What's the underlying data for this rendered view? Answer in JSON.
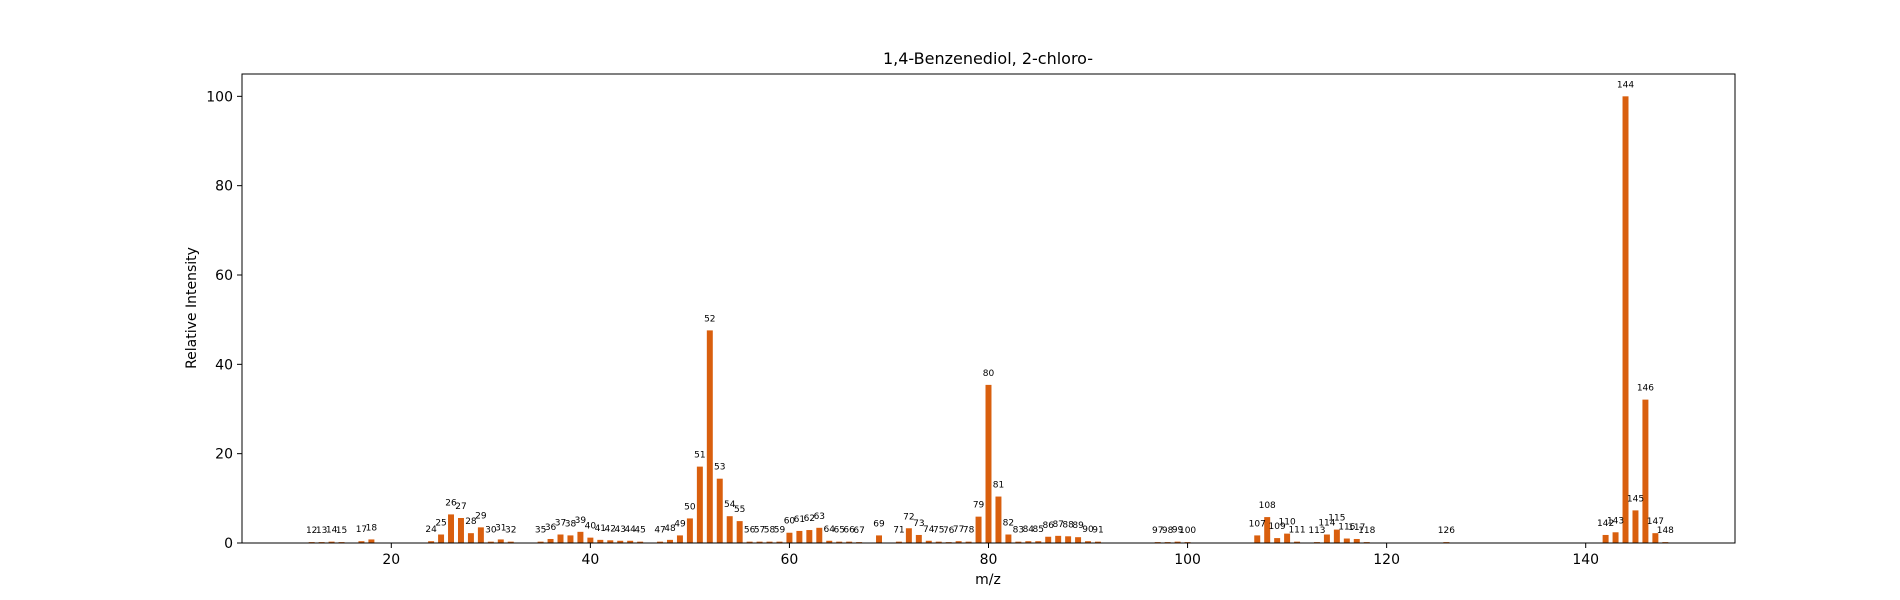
{
  "chart_data": {
    "type": "bar",
    "title": "1,4-Benzenediol, 2-chloro-",
    "xlabel": "m/z",
    "ylabel": "Relative Intensity",
    "xlim": [
      5,
      155
    ],
    "ylim": [
      0,
      105
    ],
    "xticks": [
      20,
      40,
      60,
      80,
      100,
      120,
      140
    ],
    "yticks": [
      0,
      20,
      40,
      60,
      80,
      100
    ],
    "grid": false,
    "bar_color": "#d95f0e",
    "points": [
      {
        "x": 12,
        "y": 0.2
      },
      {
        "x": 13,
        "y": 0.2
      },
      {
        "x": 14,
        "y": 0.3
      },
      {
        "x": 15,
        "y": 0.2
      },
      {
        "x": 17,
        "y": 0.4
      },
      {
        "x": 18,
        "y": 0.8
      },
      {
        "x": 24,
        "y": 0.4
      },
      {
        "x": 25,
        "y": 1.9
      },
      {
        "x": 26,
        "y": 6.4
      },
      {
        "x": 27,
        "y": 5.6
      },
      {
        "x": 28,
        "y": 2.2
      },
      {
        "x": 29,
        "y": 3.5
      },
      {
        "x": 30,
        "y": 0.3
      },
      {
        "x": 31,
        "y": 0.8
      },
      {
        "x": 32,
        "y": 0.3
      },
      {
        "x": 35,
        "y": 0.3
      },
      {
        "x": 36,
        "y": 0.9
      },
      {
        "x": 37,
        "y": 1.9
      },
      {
        "x": 38,
        "y": 1.7
      },
      {
        "x": 39,
        "y": 2.5
      },
      {
        "x": 40,
        "y": 1.2
      },
      {
        "x": 41,
        "y": 0.7
      },
      {
        "x": 42,
        "y": 0.6
      },
      {
        "x": 43,
        "y": 0.5
      },
      {
        "x": 44,
        "y": 0.5
      },
      {
        "x": 45,
        "y": 0.3
      },
      {
        "x": 47,
        "y": 0.3
      },
      {
        "x": 48,
        "y": 0.7
      },
      {
        "x": 49,
        "y": 1.7
      },
      {
        "x": 50,
        "y": 5.5
      },
      {
        "x": 51,
        "y": 17.1
      },
      {
        "x": 52,
        "y": 47.6
      },
      {
        "x": 53,
        "y": 14.4
      },
      {
        "x": 54,
        "y": 6.0
      },
      {
        "x": 55,
        "y": 4.9
      },
      {
        "x": 56,
        "y": 0.3
      },
      {
        "x": 57,
        "y": 0.3
      },
      {
        "x": 58,
        "y": 0.3
      },
      {
        "x": 59,
        "y": 0.3
      },
      {
        "x": 60,
        "y": 2.3
      },
      {
        "x": 61,
        "y": 2.7
      },
      {
        "x": 62,
        "y": 2.9
      },
      {
        "x": 63,
        "y": 3.4
      },
      {
        "x": 64,
        "y": 0.5
      },
      {
        "x": 65,
        "y": 0.3
      },
      {
        "x": 66,
        "y": 0.3
      },
      {
        "x": 67,
        "y": 0.2
      },
      {
        "x": 69,
        "y": 1.7
      },
      {
        "x": 71,
        "y": 0.3
      },
      {
        "x": 72,
        "y": 3.3
      },
      {
        "x": 73,
        "y": 1.8
      },
      {
        "x": 74,
        "y": 0.5
      },
      {
        "x": 75,
        "y": 0.3
      },
      {
        "x": 76,
        "y": 0.2
      },
      {
        "x": 77,
        "y": 0.4
      },
      {
        "x": 78,
        "y": 0.3
      },
      {
        "x": 79,
        "y": 5.9
      },
      {
        "x": 80,
        "y": 35.4
      },
      {
        "x": 81,
        "y": 10.4
      },
      {
        "x": 82,
        "y": 1.9
      },
      {
        "x": 83,
        "y": 0.3
      },
      {
        "x": 84,
        "y": 0.4
      },
      {
        "x": 85,
        "y": 0.4
      },
      {
        "x": 86,
        "y": 1.4
      },
      {
        "x": 87,
        "y": 1.6
      },
      {
        "x": 88,
        "y": 1.5
      },
      {
        "x": 89,
        "y": 1.3
      },
      {
        "x": 90,
        "y": 0.4
      },
      {
        "x": 91,
        "y": 0.3
      },
      {
        "x": 97,
        "y": 0.2
      },
      {
        "x": 98,
        "y": 0.2
      },
      {
        "x": 99,
        "y": 0.3
      },
      {
        "x": 100,
        "y": 0.2
      },
      {
        "x": 107,
        "y": 1.7
      },
      {
        "x": 108,
        "y": 5.8
      },
      {
        "x": 109,
        "y": 1.1
      },
      {
        "x": 110,
        "y": 2.1
      },
      {
        "x": 111,
        "y": 0.3
      },
      {
        "x": 113,
        "y": 0.2
      },
      {
        "x": 114,
        "y": 1.9
      },
      {
        "x": 115,
        "y": 3.0
      },
      {
        "x": 116,
        "y": 1.0
      },
      {
        "x": 117,
        "y": 0.9
      },
      {
        "x": 118,
        "y": 0.2
      },
      {
        "x": 126,
        "y": 0.2
      },
      {
        "x": 142,
        "y": 1.8
      },
      {
        "x": 143,
        "y": 2.4
      },
      {
        "x": 144,
        "y": 100.0
      },
      {
        "x": 145,
        "y": 7.3
      },
      {
        "x": 146,
        "y": 32.1
      },
      {
        "x": 147,
        "y": 2.2
      },
      {
        "x": 148,
        "y": 0.2
      }
    ]
  }
}
